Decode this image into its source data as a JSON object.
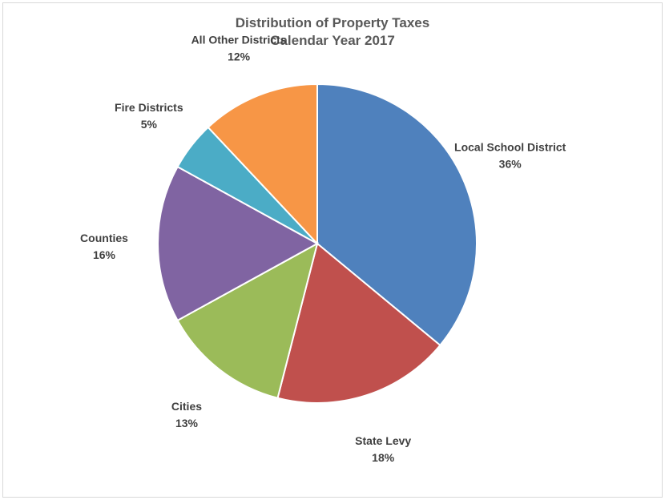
{
  "chart_data": {
    "type": "pie",
    "title": "Distribution of Property Taxes",
    "subtitle": "Calendar Year 2017",
    "legend": "none",
    "slices": [
      {
        "label": "Local School District",
        "value": 36,
        "pct_label": "36%",
        "color": "#4f81bd"
      },
      {
        "label": "State Levy",
        "value": 18,
        "pct_label": "18%",
        "color": "#c0504d"
      },
      {
        "label": "Cities",
        "value": 13,
        "pct_label": "13%",
        "color": "#9bbb59"
      },
      {
        "label": "Counties",
        "value": 16,
        "pct_label": "16%",
        "color": "#8064a2"
      },
      {
        "label": "Fire Districts",
        "value": 5,
        "pct_label": "5%",
        "color": "#4bacc6"
      },
      {
        "label": "All Other Districts",
        "value": 12,
        "pct_label": "12%",
        "color": "#f79646"
      }
    ]
  }
}
